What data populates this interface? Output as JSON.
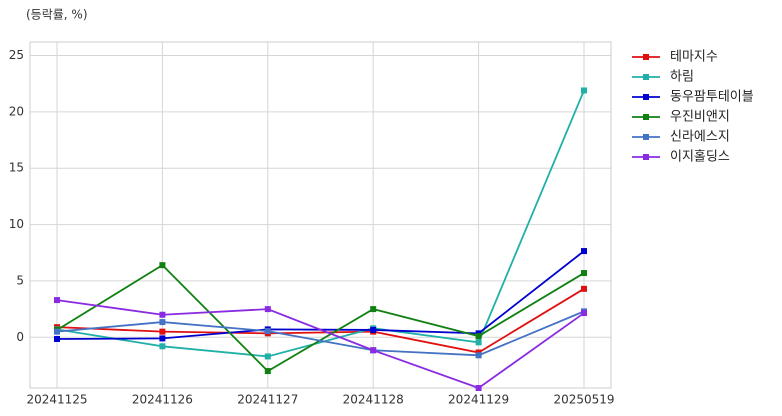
{
  "chart_data": {
    "type": "line",
    "y_label": "(등락률, %)",
    "categories": [
      "20241125",
      "20241126",
      "20241127",
      "20241128",
      "20241129",
      "20250519"
    ],
    "series": [
      {
        "name": "테마지수",
        "color": "#e01010",
        "values": [
          0.9,
          0.5,
          0.35,
          0.5,
          -1.35,
          4.3
        ]
      },
      {
        "name": "하림",
        "color": "#20b0a8",
        "values": [
          0.7,
          -0.8,
          -1.7,
          0.8,
          -0.45,
          21.9
        ]
      },
      {
        "name": "동우팜투테이블",
        "color": "#0000d0",
        "values": [
          -0.15,
          -0.1,
          0.7,
          0.65,
          0.35,
          7.65
        ]
      },
      {
        "name": "우진비앤지",
        "color": "#108010",
        "values": [
          0.65,
          6.4,
          -3.0,
          2.5,
          0.1,
          5.7
        ]
      },
      {
        "name": "신라에스지",
        "color": "#4472c4",
        "values": [
          0.5,
          1.35,
          0.55,
          -1.15,
          -1.6,
          2.3
        ]
      },
      {
        "name": "이지홀딩스",
        "color": "#8a2be2",
        "values": [
          3.3,
          2.0,
          2.5,
          -1.15,
          -4.5,
          2.15
        ]
      }
    ],
    "ylim": [
      -4.5,
      26.2
    ],
    "yticks": [
      0,
      5,
      10,
      15,
      20,
      25
    ],
    "grid": true
  }
}
